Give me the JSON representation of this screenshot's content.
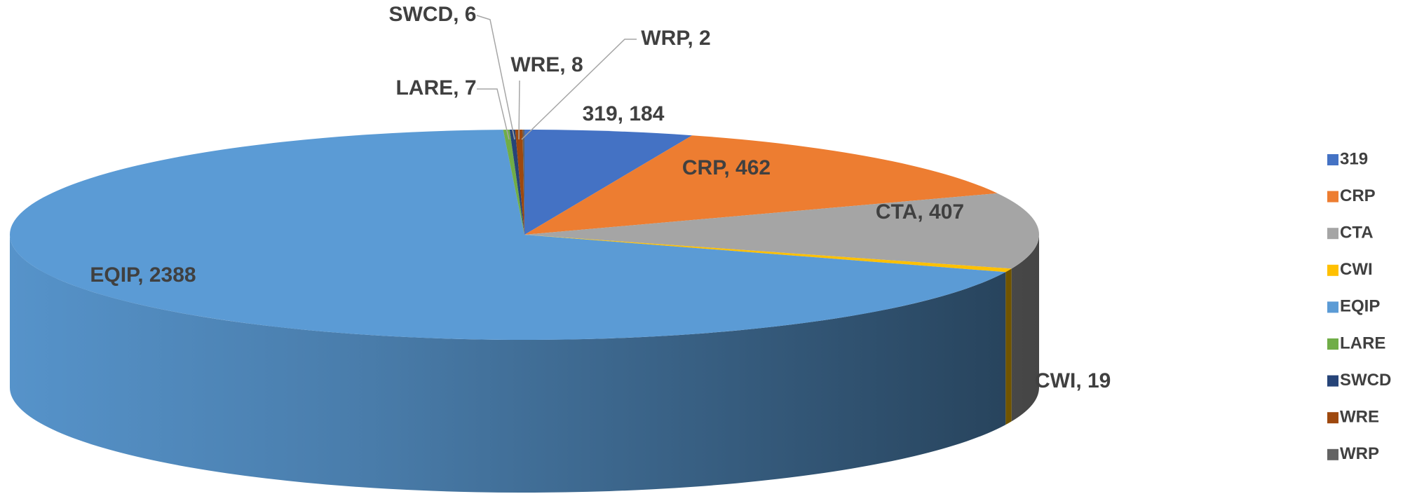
{
  "chart_data": {
    "type": "pie3d",
    "categories": [
      "319",
      "CRP",
      "CTA",
      "CWI",
      "EQIP",
      "LARE",
      "SWCD",
      "WRE",
      "WRP"
    ],
    "values": [
      184,
      462,
      407,
      19,
      2388,
      7,
      6,
      8,
      2
    ],
    "value_labels": [
      "319, 184",
      "CRP, 462",
      "CTA, 407",
      "CWI, 19",
      "EQIP, 2388",
      "LARE, 7",
      "SWCD, 6",
      "WRE, 8",
      "WRP, 2"
    ],
    "colors": [
      "#4472c4",
      "#ed7d31",
      "#a5a5a5",
      "#ffc000",
      "#5b9bd5",
      "#70ad47",
      "#264478",
      "#9e480e",
      "#636363"
    ],
    "legend": "right"
  }
}
